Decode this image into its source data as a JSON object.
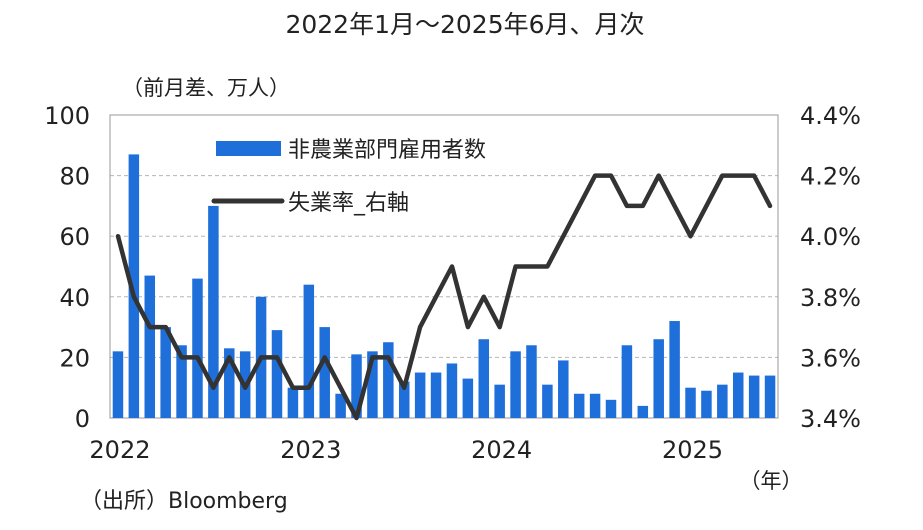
{
  "chart_data": {
    "type": "bar+line",
    "title": "2022年1月～2025年6月、月次",
    "left_axis_unit": "（前月差、万人）",
    "x_unit": "（年）",
    "source": "（出所）Bloomberg",
    "x_ticks": [
      "2022",
      "2023",
      "2024",
      "2025"
    ],
    "y_left": {
      "min": 0,
      "max": 100,
      "ticks": [
        "0",
        "20",
        "40",
        "60",
        "80",
        "100"
      ]
    },
    "y_right": {
      "min": 3.4,
      "max": 4.4,
      "ticks": [
        "3.4%",
        "3.6%",
        "3.8%",
        "4.0%",
        "4.2%",
        "4.4%"
      ]
    },
    "grid": true,
    "legend_position": "top-left",
    "months": [
      "2022-01",
      "2022-02",
      "2022-03",
      "2022-04",
      "2022-05",
      "2022-06",
      "2022-07",
      "2022-08",
      "2022-09",
      "2022-10",
      "2022-11",
      "2022-12",
      "2023-01",
      "2023-02",
      "2023-03",
      "2023-04",
      "2023-05",
      "2023-06",
      "2023-07",
      "2023-08",
      "2023-09",
      "2023-10",
      "2023-11",
      "2023-12",
      "2024-01",
      "2024-02",
      "2024-03",
      "2024-04",
      "2024-05",
      "2024-06",
      "2024-07",
      "2024-08",
      "2024-09",
      "2024-10",
      "2024-11",
      "2024-12",
      "2025-01",
      "2025-02",
      "2025-03",
      "2025-04",
      "2025-05",
      "2025-06"
    ],
    "series": [
      {
        "name": "非農業部門雇用者数",
        "type": "bar",
        "axis": "left",
        "color": "#1e6fd9",
        "values": [
          22,
          87,
          47,
          30,
          24,
          46,
          70,
          23,
          22,
          40,
          29,
          10,
          44,
          30,
          8,
          21,
          22,
          25,
          12,
          15,
          15,
          18,
          13,
          26,
          11,
          22,
          24,
          11,
          19,
          8,
          8,
          6,
          24,
          4,
          26,
          32,
          10,
          9,
          11,
          15,
          14,
          14
        ]
      },
      {
        "name": "失業率_右軸",
        "type": "line",
        "axis": "right",
        "color": "#333333",
        "values": [
          4.0,
          3.8,
          3.7,
          3.7,
          3.6,
          3.6,
          3.5,
          3.6,
          3.5,
          3.6,
          3.6,
          3.5,
          3.5,
          3.6,
          3.5,
          3.4,
          3.6,
          3.6,
          3.5,
          3.7,
          3.8,
          3.9,
          3.7,
          3.8,
          3.7,
          3.9,
          3.9,
          3.9,
          4.0,
          4.1,
          4.2,
          4.2,
          4.1,
          4.1,
          4.2,
          4.1,
          4.0,
          4.1,
          4.2,
          4.2,
          4.2,
          4.1
        ]
      }
    ]
  }
}
